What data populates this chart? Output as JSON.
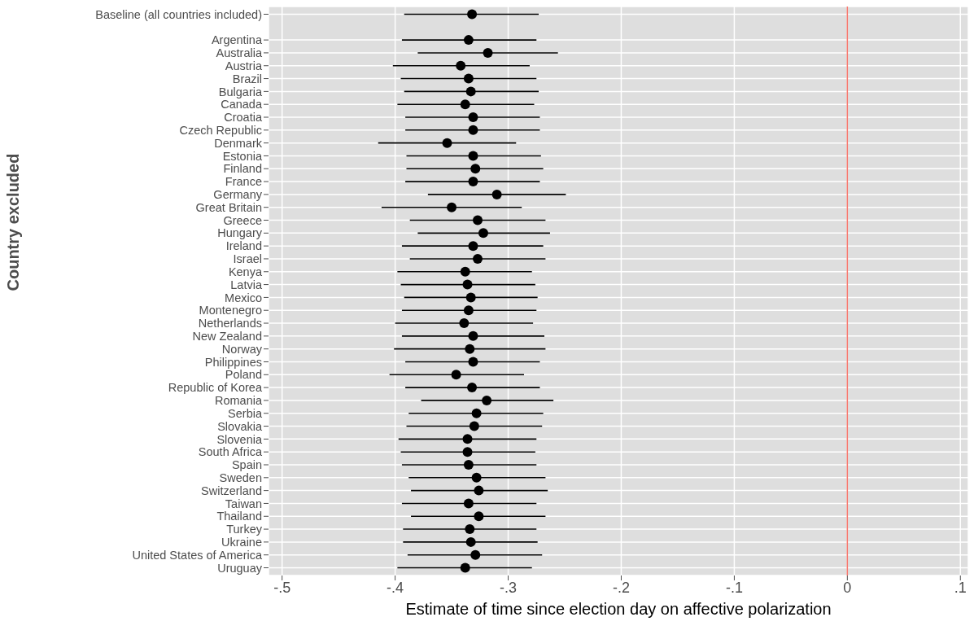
{
  "chart_data": {
    "type": "scatter",
    "orientation": "horizontal",
    "xlabel": "Estimate of time since election day on affective polarization",
    "ylabel": "Country excluded",
    "categories": [
      "Baseline (all countries included)",
      null,
      "Argentina",
      "Australia",
      "Austria",
      "Brazil",
      "Bulgaria",
      "Canada",
      "Croatia",
      "Czech Republic",
      "Denmark",
      "Estonia",
      "Finland",
      "France",
      "Germany",
      "Great Britain",
      "Greece",
      "Hungary",
      "Ireland",
      "Israel",
      "Kenya",
      "Latvia",
      "Mexico",
      "Montenegro",
      "Netherlands",
      "New Zealand",
      "Norway",
      "Philippines",
      "Poland",
      "Republic of Korea",
      "Romania",
      "Serbia",
      "Slovakia",
      "Slovenia",
      "South Africa",
      "Spain",
      "Sweden",
      "Switzerland",
      "Taiwan",
      "Thailand",
      "Turkey",
      "Ukraine",
      "United States of America",
      "Uruguay"
    ],
    "values": [
      -0.332,
      null,
      -0.335,
      -0.318,
      -0.342,
      -0.335,
      -0.333,
      -0.338,
      -0.331,
      -0.331,
      -0.354,
      -0.331,
      -0.329,
      -0.331,
      -0.31,
      -0.35,
      -0.327,
      -0.322,
      -0.331,
      -0.327,
      -0.338,
      -0.336,
      -0.333,
      -0.335,
      -0.339,
      -0.331,
      -0.334,
      -0.331,
      -0.346,
      -0.332,
      -0.319,
      -0.328,
      -0.33,
      -0.336,
      -0.336,
      -0.335,
      -0.328,
      -0.326,
      -0.335,
      -0.326,
      -0.334,
      -0.333,
      -0.329,
      -0.338
    ],
    "errors": [
      [
        -0.392,
        -0.273
      ],
      null,
      [
        -0.394,
        -0.275
      ],
      [
        -0.38,
        -0.256
      ],
      [
        -0.402,
        -0.281
      ],
      [
        -0.395,
        -0.275
      ],
      [
        -0.392,
        -0.273
      ],
      [
        -0.398,
        -0.277
      ],
      [
        -0.391,
        -0.272
      ],
      [
        -0.391,
        -0.272
      ],
      [
        -0.415,
        -0.293
      ],
      [
        -0.39,
        -0.271
      ],
      [
        -0.39,
        -0.269
      ],
      [
        -0.391,
        -0.272
      ],
      [
        -0.371,
        -0.249
      ],
      [
        -0.412,
        -0.288
      ],
      [
        -0.387,
        -0.267
      ],
      [
        -0.38,
        -0.263
      ],
      [
        -0.394,
        -0.269
      ],
      [
        -0.387,
        -0.267
      ],
      [
        -0.398,
        -0.279
      ],
      [
        -0.395,
        -0.276
      ],
      [
        -0.392,
        -0.274
      ],
      [
        -0.394,
        -0.275
      ],
      [
        -0.4,
        -0.278
      ],
      [
        -0.394,
        -0.268
      ],
      [
        -0.401,
        -0.267
      ],
      [
        -0.391,
        -0.272
      ],
      [
        -0.405,
        -0.286
      ],
      [
        -0.391,
        -0.272
      ],
      [
        -0.377,
        -0.26
      ],
      [
        -0.388,
        -0.269
      ],
      [
        -0.39,
        -0.27
      ],
      [
        -0.397,
        -0.275
      ],
      [
        -0.395,
        -0.276
      ],
      [
        -0.394,
        -0.275
      ],
      [
        -0.388,
        -0.267
      ],
      [
        -0.386,
        -0.265
      ],
      [
        -0.394,
        -0.275
      ],
      [
        -0.386,
        -0.267
      ],
      [
        -0.393,
        -0.275
      ],
      [
        -0.393,
        -0.274
      ],
      [
        -0.389,
        -0.27
      ],
      [
        -0.398,
        -0.279
      ]
    ],
    "color": "#000000",
    "marker": "circle",
    "grid": true,
    "xlim": [
      -0.512,
      0.107
    ],
    "xticks": [
      {
        "value": -0.5,
        "label": "-.5"
      },
      {
        "value": -0.4,
        "label": "-.4"
      },
      {
        "value": -0.3,
        "label": "-.3"
      },
      {
        "value": -0.2,
        "label": "-.2"
      },
      {
        "value": -0.1,
        "label": "-.1"
      },
      0,
      {
        "value": 0.1,
        "label": ".1"
      }
    ],
    "ref_lines": [
      {
        "axis": "x",
        "value": 0,
        "color": "#f8766d"
      }
    ]
  }
}
